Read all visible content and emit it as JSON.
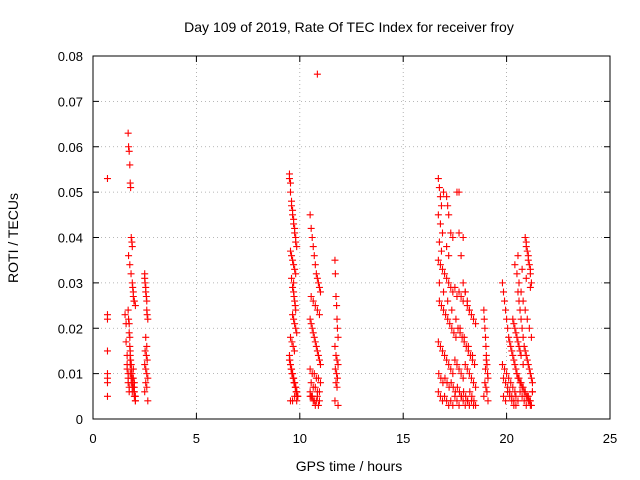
{
  "chart_data": {
    "type": "scatter",
    "title": "Day 109 of 2019, Rate Of TEC Index for receiver froy",
    "xlabel": "GPS time / hours",
    "ylabel": "ROTI / TECUs",
    "xlim": [
      0,
      25
    ],
    "ylim": [
      0,
      0.08
    ],
    "xticks": [
      0,
      5,
      10,
      15,
      20,
      25
    ],
    "yticks": [
      0,
      0.01,
      0.02,
      0.03,
      0.04,
      0.05,
      0.06,
      0.07,
      0.08
    ],
    "xtick_labels": [
      "0",
      "5",
      "10",
      "15",
      "20",
      "25"
    ],
    "ytick_labels": [
      "0",
      "0.01",
      "0.02",
      "0.03",
      "0.04",
      "0.05",
      "0.06",
      "0.07",
      "0.08"
    ],
    "grid": true,
    "marker": "+",
    "color": "#ff0000",
    "series": [
      {
        "name": "ROTI",
        "x": [
          0.7,
          0.7,
          0.7,
          0.7,
          0.7,
          0.7,
          0.7,
          0.7,
          1.55,
          1.6,
          1.6,
          1.65,
          1.65,
          1.65,
          1.7,
          1.7,
          1.7,
          1.75,
          1.75,
          1.8,
          1.8,
          1.8,
          1.85,
          1.85,
          1.9,
          1.9,
          1.95,
          1.95,
          2.0,
          2.0,
          2.0,
          2.05,
          2.05,
          1.7,
          1.72,
          1.75,
          1.78,
          1.8,
          1.82,
          1.85,
          1.88,
          1.9,
          1.72,
          1.78,
          1.84,
          1.9,
          1.95,
          2.0,
          2.05,
          1.7,
          1.72,
          1.75,
          1.75,
          1.78,
          1.78,
          1.8,
          1.8,
          1.82,
          1.85,
          1.85,
          1.88,
          1.9,
          1.92,
          1.95,
          1.98,
          2.0,
          2.02,
          2.05,
          1.92,
          1.95,
          1.98,
          2.5,
          2.5,
          2.52,
          2.55,
          2.55,
          2.58,
          2.6,
          2.6,
          2.62,
          2.65,
          2.55,
          2.6,
          2.52,
          2.58,
          2.62,
          2.5,
          2.55,
          2.6,
          2.65,
          2.55,
          2.6,
          2.5,
          2.65,
          9.5,
          9.5,
          9.55,
          9.55,
          9.6,
          9.6,
          9.65,
          9.65,
          9.7,
          9.7,
          9.75,
          9.75,
          9.8,
          9.8,
          9.85,
          9.55,
          9.6,
          9.65,
          9.7,
          9.75,
          9.8,
          9.6,
          9.7,
          9.65,
          9.7,
          9.72,
          9.75,
          9.78,
          9.8,
          9.65,
          9.7,
          9.75,
          9.8,
          9.85,
          9.55,
          9.62,
          9.68,
          9.74,
          9.5,
          9.52,
          9.55,
          9.58,
          9.6,
          9.62,
          9.65,
          9.68,
          9.7,
          9.72,
          9.75,
          9.78,
          9.8,
          9.82,
          9.85,
          9.88,
          9.9,
          9.5,
          9.55,
          9.6,
          9.65,
          9.7,
          9.75,
          9.8,
          9.85,
          9.9,
          9.55,
          9.65,
          9.75,
          9.85,
          10.5,
          10.55,
          10.6,
          10.65,
          10.7,
          10.75,
          10.8,
          10.85,
          10.9,
          10.95,
          11.0,
          10.55,
          10.65,
          10.75,
          10.85,
          10.95,
          10.5,
          10.55,
          10.6,
          10.65,
          10.7,
          10.75,
          10.8,
          10.85,
          10.9,
          10.95,
          11.0,
          10.5,
          10.6,
          10.7,
          10.8,
          10.9,
          11.0,
          10.55,
          10.65,
          10.75,
          10.85,
          10.95,
          10.5,
          10.6,
          10.7,
          10.8,
          10.9,
          10.55,
          10.65,
          10.75,
          10.85,
          10.95,
          10.5,
          10.6,
          11.7,
          11.72,
          11.75,
          11.78,
          11.8,
          11.82,
          11.85,
          11.7,
          11.75,
          11.8,
          11.85,
          11.72,
          11.78,
          11.82,
          11.75,
          11.8,
          11.7,
          11.85,
          10.85,
          16.7,
          16.75,
          16.8,
          16.85,
          16.7,
          16.8,
          16.9,
          16.75,
          16.85,
          16.95,
          17.1,
          17.15,
          17.2,
          17.3,
          17.4,
          16.7,
          16.8,
          16.9,
          17.0,
          17.1,
          17.2,
          17.3,
          17.4,
          17.5,
          17.6,
          17.7,
          17.8,
          17.9,
          18.0,
          18.1,
          18.2,
          18.3,
          18.4,
          18.5,
          16.75,
          16.85,
          16.95,
          17.05,
          17.15,
          17.25,
          17.35,
          17.45,
          17.55,
          17.65,
          17.75,
          17.85,
          17.95,
          18.05,
          18.15,
          18.25,
          18.35,
          18.45,
          16.7,
          16.8,
          16.9,
          17.0,
          17.1,
          17.2,
          17.3,
          17.4,
          17.5,
          17.6,
          17.7,
          17.8,
          17.9,
          18.0,
          18.1,
          18.2,
          18.3,
          18.4,
          18.5,
          16.72,
          16.82,
          16.92,
          17.02,
          17.12,
          17.22,
          17.32,
          17.42,
          17.52,
          17.62,
          17.72,
          17.82,
          17.92,
          18.02,
          18.12,
          18.22,
          18.32,
          18.42,
          16.7,
          16.8,
          16.9,
          17.0,
          17.1,
          17.2,
          17.3,
          17.4,
          17.5,
          17.6,
          17.7,
          17.8,
          17.9,
          18.0,
          18.1,
          18.2,
          18.3,
          18.4,
          18.5,
          16.75,
          16.95,
          17.15,
          17.35,
          17.55,
          17.75,
          17.95,
          18.15,
          18.35,
          17.6,
          17.7,
          17.8,
          17.9,
          18.0,
          18.1,
          18.2,
          17.7,
          17.9,
          17.1,
          17.2,
          18.9,
          18.92,
          18.95,
          18.98,
          19.0,
          19.02,
          19.05,
          19.08,
          19.1,
          18.95,
          19.0,
          19.05,
          18.9,
          19.1,
          18.98,
          19.02,
          19.8,
          19.85,
          19.9,
          19.95,
          20.0,
          20.05,
          20.1,
          20.15,
          20.2,
          20.25,
          20.3,
          20.35,
          20.4,
          20.45,
          20.5,
          20.55,
          20.6,
          20.65,
          20.7,
          20.75,
          20.8,
          20.85,
          20.9,
          20.95,
          21.0,
          21.05,
          21.1,
          21.15,
          21.2,
          21.25,
          19.85,
          19.95,
          20.05,
          20.15,
          20.25,
          20.35,
          20.45,
          20.55,
          20.65,
          20.75,
          20.85,
          20.95,
          21.05,
          21.15,
          21.25,
          19.8,
          19.9,
          20.0,
          20.1,
          20.2,
          20.3,
          20.4,
          20.5,
          20.6,
          20.7,
          20.8,
          20.9,
          21.0,
          21.1,
          21.2,
          19.85,
          19.95,
          20.05,
          20.15,
          20.25,
          20.35,
          20.45,
          20.55,
          20.65,
          20.75,
          20.85,
          20.95,
          21.05,
          21.15,
          21.25,
          20.4,
          20.5,
          20.6,
          20.7,
          20.8,
          20.9,
          21.0,
          21.1,
          21.2,
          20.55,
          20.75,
          20.95,
          21.15,
          20.9,
          20.95,
          21.0,
          21.05,
          21.1,
          21.15,
          21.2,
          20.95,
          21.05,
          21.15,
          20.3,
          20.4,
          20.5,
          20.6,
          20.7,
          20.8,
          20.35,
          20.45,
          20.55,
          20.65
        ],
        "y": [
          0.053,
          0.023,
          0.022,
          0.015,
          0.01,
          0.009,
          0.008,
          0.005,
          0.023,
          0.021,
          0.017,
          0.014,
          0.012,
          0.011,
          0.01,
          0.009,
          0.008,
          0.007,
          0.006,
          0.013,
          0.012,
          0.01,
          0.009,
          0.008,
          0.007,
          0.006,
          0.011,
          0.009,
          0.008,
          0.007,
          0.006,
          0.005,
          0.004,
          0.063,
          0.06,
          0.059,
          0.056,
          0.052,
          0.051,
          0.04,
          0.039,
          0.038,
          0.036,
          0.034,
          0.032,
          0.03,
          0.028,
          0.026,
          0.025,
          0.024,
          0.022,
          0.021,
          0.019,
          0.018,
          0.016,
          0.015,
          0.014,
          0.013,
          0.012,
          0.011,
          0.01,
          0.009,
          0.008,
          0.007,
          0.006,
          0.005,
          0.005,
          0.004,
          0.029,
          0.027,
          0.026,
          0.032,
          0.031,
          0.03,
          0.029,
          0.028,
          0.027,
          0.026,
          0.024,
          0.023,
          0.022,
          0.018,
          0.016,
          0.015,
          0.014,
          0.013,
          0.012,
          0.011,
          0.01,
          0.009,
          0.008,
          0.007,
          0.006,
          0.004,
          0.054,
          0.053,
          0.052,
          0.05,
          0.048,
          0.047,
          0.046,
          0.045,
          0.044,
          0.043,
          0.042,
          0.041,
          0.04,
          0.039,
          0.038,
          0.037,
          0.036,
          0.035,
          0.034,
          0.033,
          0.032,
          0.031,
          0.03,
          0.029,
          0.028,
          0.027,
          0.026,
          0.025,
          0.024,
          0.023,
          0.022,
          0.021,
          0.02,
          0.019,
          0.018,
          0.017,
          0.016,
          0.015,
          0.014,
          0.013,
          0.012,
          0.011,
          0.011,
          0.01,
          0.01,
          0.009,
          0.009,
          0.008,
          0.008,
          0.007,
          0.007,
          0.006,
          0.006,
          0.005,
          0.005,
          0.013,
          0.012,
          0.011,
          0.01,
          0.009,
          0.008,
          0.007,
          0.006,
          0.005,
          0.004,
          0.004,
          0.005,
          0.004,
          0.045,
          0.042,
          0.04,
          0.038,
          0.036,
          0.034,
          0.032,
          0.031,
          0.03,
          0.029,
          0.028,
          0.027,
          0.026,
          0.025,
          0.024,
          0.023,
          0.022,
          0.021,
          0.02,
          0.019,
          0.018,
          0.017,
          0.016,
          0.015,
          0.014,
          0.013,
          0.012,
          0.011,
          0.01,
          0.01,
          0.009,
          0.009,
          0.008,
          0.008,
          0.007,
          0.007,
          0.006,
          0.006,
          0.005,
          0.005,
          0.004,
          0.004,
          0.003,
          0.005,
          0.004,
          0.003,
          0.005,
          0.004,
          0.006,
          0.005,
          0.035,
          0.032,
          0.027,
          0.025,
          0.022,
          0.02,
          0.018,
          0.016,
          0.014,
          0.013,
          0.012,
          0.011,
          0.01,
          0.009,
          0.008,
          0.007,
          0.004,
          0.003,
          0.076,
          0.053,
          0.051,
          0.049,
          0.047,
          0.045,
          0.043,
          0.041,
          0.039,
          0.037,
          0.05,
          0.049,
          0.047,
          0.045,
          0.041,
          0.04,
          0.035,
          0.034,
          0.033,
          0.032,
          0.031,
          0.03,
          0.029,
          0.028,
          0.029,
          0.027,
          0.028,
          0.027,
          0.026,
          0.028,
          0.025,
          0.024,
          0.023,
          0.022,
          0.021,
          0.026,
          0.025,
          0.024,
          0.023,
          0.022,
          0.021,
          0.02,
          0.019,
          0.018,
          0.02,
          0.019,
          0.018,
          0.017,
          0.016,
          0.015,
          0.014,
          0.013,
          0.012,
          0.017,
          0.016,
          0.015,
          0.014,
          0.013,
          0.012,
          0.011,
          0.01,
          0.013,
          0.012,
          0.011,
          0.01,
          0.009,
          0.012,
          0.011,
          0.01,
          0.009,
          0.008,
          0.007,
          0.01,
          0.009,
          0.008,
          0.009,
          0.008,
          0.007,
          0.008,
          0.007,
          0.006,
          0.007,
          0.006,
          0.005,
          0.006,
          0.005,
          0.004,
          0.006,
          0.005,
          0.004,
          0.006,
          0.005,
          0.004,
          0.005,
          0.004,
          0.003,
          0.004,
          0.003,
          0.005,
          0.004,
          0.003,
          0.005,
          0.004,
          0.003,
          0.004,
          0.003,
          0.004,
          0.003,
          0.003,
          0.03,
          0.028,
          0.026,
          0.024,
          0.022,
          0.02,
          0.018,
          0.016,
          0.014,
          0.05,
          0.05,
          0.036,
          0.03,
          0.028,
          0.026,
          0.024,
          0.041,
          0.04,
          0.038,
          0.036,
          0.024,
          0.022,
          0.02,
          0.018,
          0.016,
          0.014,
          0.012,
          0.01,
          0.009,
          0.008,
          0.007,
          0.006,
          0.005,
          0.004,
          0.011,
          0.013,
          0.03,
          0.028,
          0.026,
          0.024,
          0.022,
          0.02,
          0.018,
          0.017,
          0.016,
          0.015,
          0.014,
          0.013,
          0.012,
          0.011,
          0.01,
          0.028,
          0.026,
          0.024,
          0.022,
          0.02,
          0.018,
          0.016,
          0.015,
          0.014,
          0.013,
          0.012,
          0.011,
          0.01,
          0.009,
          0.008,
          0.009,
          0.008,
          0.007,
          0.006,
          0.005,
          0.004,
          0.003,
          0.009,
          0.008,
          0.007,
          0.006,
          0.005,
          0.004,
          0.003,
          0.006,
          0.012,
          0.011,
          0.01,
          0.009,
          0.008,
          0.007,
          0.006,
          0.01,
          0.009,
          0.008,
          0.007,
          0.006,
          0.005,
          0.004,
          0.003,
          0.005,
          0.004,
          0.006,
          0.005,
          0.004,
          0.003,
          0.005,
          0.004,
          0.006,
          0.005,
          0.004,
          0.003,
          0.005,
          0.004,
          0.006,
          0.034,
          0.032,
          0.03,
          0.028,
          0.026,
          0.024,
          0.022,
          0.02,
          0.018,
          0.036,
          0.033,
          0.031,
          0.029,
          0.04,
          0.039,
          0.037,
          0.036,
          0.034,
          0.032,
          0.03,
          0.038,
          0.035,
          0.033,
          0.022,
          0.02,
          0.018,
          0.016,
          0.014,
          0.012,
          0.021,
          0.019,
          0.017,
          0.015
        ]
      }
    ]
  }
}
